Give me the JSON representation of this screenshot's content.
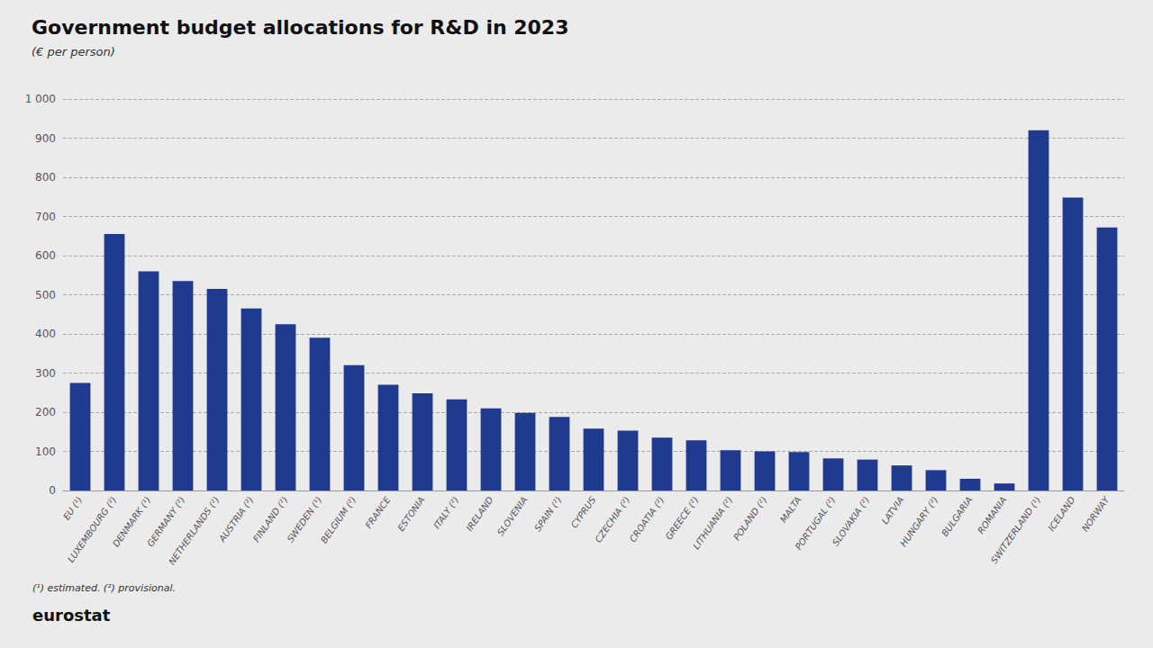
{
  "chart_data": {
    "type": "bar",
    "title": "Government budget allocations for R&D in 2023",
    "subtitle": "(€ per person)",
    "annotations": [
      "(¹) estimated. (²) provisional.",
      "eurostat"
    ],
    "categories": [
      "EU (¹)",
      "LUXEMBOURG (²)",
      "DENMARK (¹)",
      "GERMANY (²)",
      "NETHERLANDS (²)",
      "AUSTRIA (²)",
      "FINLAND (²)",
      "SWEDEN (¹)",
      "BELGIUM (²)",
      "FRANCE",
      "ESTONIA",
      "ITALY (²)",
      "IRELAND",
      "SLOVENIA",
      "SPAIN (²)",
      "CYPRUS",
      "CZECHIA (²)",
      "CROATIA (²)",
      "GREECE (²)",
      "LITHUANIA (²)",
      "POLAND (²)",
      "MALTA",
      "PORTUGAL (²)",
      "SLOVAKIA (²)",
      "LATVIA",
      "HUNGARY (²)",
      "BULGARIA",
      "ROMANIA",
      "SWITZERLAND (¹)",
      "ICELAND",
      "NORWAY"
    ],
    "values": [
      275,
      655,
      560,
      535,
      515,
      465,
      425,
      390,
      320,
      270,
      248,
      233,
      210,
      198,
      188,
      158,
      153,
      135,
      128,
      103,
      100,
      98,
      82,
      79,
      64,
      52,
      30,
      18,
      920,
      748,
      672
    ],
    "color": "#1f3a8f",
    "ylim": [
      0,
      1000
    ],
    "yticks": [
      0,
      100,
      200,
      300,
      400,
      500,
      600,
      700,
      800,
      900,
      {
        "value": 1000,
        "label": "1 000"
      }
    ],
    "grid": true
  }
}
